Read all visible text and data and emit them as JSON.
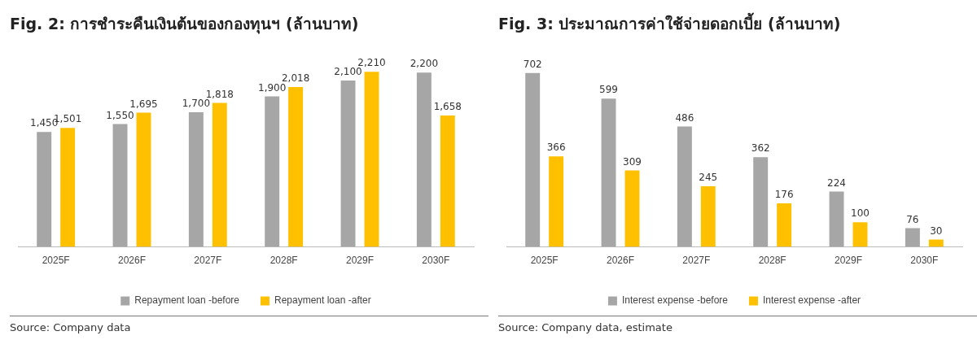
{
  "chart_data": [
    {
      "type": "bar",
      "title": "Fig. 2: การชำระคืนเงินต้นของกองทุนฯ (ล้านบาท)",
      "categories": [
        "2025F",
        "2026F",
        "2027F",
        "2028F",
        "2029F",
        "2030F"
      ],
      "series": [
        {
          "name": "Repayment loan -before",
          "color": "#a6a6a6",
          "values": [
            1450,
            1550,
            1700,
            1900,
            2100,
            2200
          ],
          "value_labels": [
            "1,450",
            "1,550",
            "1,700",
            "1,900",
            "2,100",
            "2,200"
          ]
        },
        {
          "name": "Repayment loan -after",
          "color": "#ffc000",
          "values": [
            1501,
            1695,
            1818,
            2018,
            2210,
            1658
          ],
          "value_labels": [
            "1,501",
            "1,695",
            "1,818",
            "2,018",
            "2,210",
            "1,658"
          ]
        }
      ],
      "legend": "bottom",
      "grid": false,
      "annotations": [
        "Source: Company data"
      ]
    },
    {
      "type": "bar",
      "title": "Fig. 3: ประมาณการค่าใช้จ่ายดอกเบี้ย (ล้านบาท)",
      "categories": [
        "2025F",
        "2026F",
        "2027F",
        "2028F",
        "2029F",
        "2030F"
      ],
      "series": [
        {
          "name": "Interest expense -before",
          "color": "#a6a6a6",
          "values": [
            702,
            599,
            486,
            362,
            224,
            76
          ]
        },
        {
          "name": "Interest expense -after",
          "color": "#ffc000",
          "values": [
            366,
            309,
            245,
            176,
            100,
            30
          ]
        }
      ],
      "data_labels": true,
      "legend": "bottom",
      "grid": false,
      "annotations": [
        "Source: Company data, estimate"
      ]
    }
  ]
}
